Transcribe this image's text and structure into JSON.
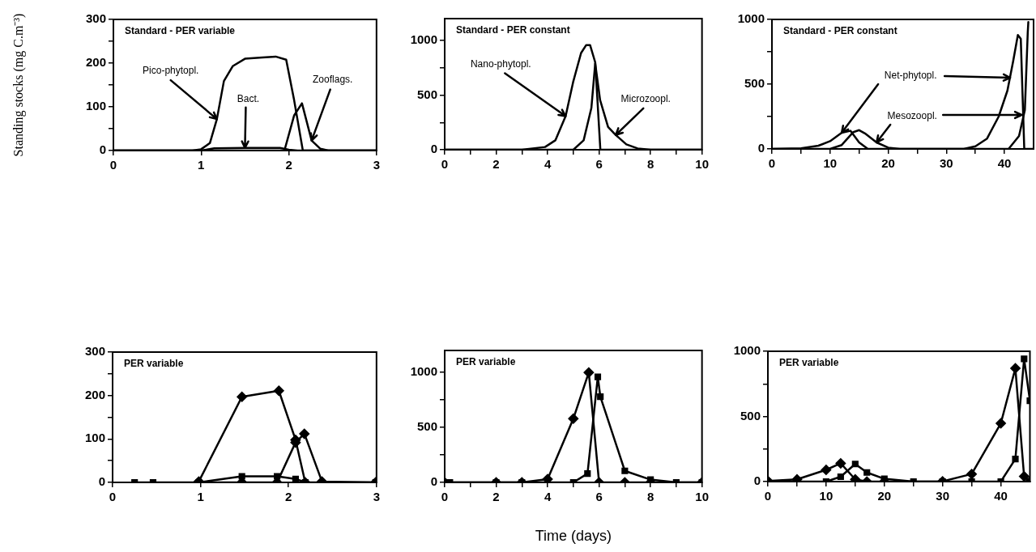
{
  "chart_data": [
    {
      "type": "line",
      "title": "Standard - PER variable",
      "ylabel": "Standing stocks (mg C.m⁻³)",
      "xlim": [
        0,
        3
      ],
      "xticks": [
        0,
        1,
        2,
        3
      ],
      "ylim": [
        0,
        300
      ],
      "yticks": [
        0,
        {
          "value": 50,
          "label": null
        },
        100,
        {
          "value": 150,
          "label": null
        },
        200,
        {
          "value": 250,
          "label": null
        },
        300
      ],
      "series": [
        {
          "color": "#000000",
          "x": [
            0,
            0.9,
            1.0,
            1.1,
            1.18,
            1.26,
            1.36,
            1.5,
            1.7,
            1.85,
            1.97,
            2.06,
            2.16,
            3
          ],
          "values": [
            0,
            0,
            3,
            17,
            72,
            159,
            193,
            210,
            213,
            215,
            208,
            116,
            0,
            0
          ]
        },
        {
          "color": "#000000",
          "x": [
            0,
            1.0,
            1.15,
            1.5,
            1.9,
            2.0,
            2.1,
            3
          ],
          "values": [
            0,
            0,
            5,
            6,
            6,
            2,
            0,
            0
          ]
        },
        {
          "color": "#000000",
          "x": [
            0,
            1.95,
            2.06,
            2.15,
            2.26,
            2.36,
            2.45,
            3
          ],
          "values": [
            0,
            0,
            80,
            108,
            23,
            4,
            0,
            0
          ]
        }
      ],
      "annotations": [
        {
          "text": "Pico-phytopl.",
          "x": 1.18,
          "y": 72
        },
        {
          "text": "Bact.",
          "x": 1.5,
          "y": 6
        },
        {
          "text": "Zooflags.",
          "x": 2.26,
          "y": 23
        }
      ]
    },
    {
      "type": "line",
      "title": "Standard - PER constant",
      "xlim": [
        0,
        10
      ],
      "xticks": [
        0,
        {
          "value": 1,
          "label": null
        },
        2,
        {
          "value": 3,
          "label": null
        },
        4,
        {
          "value": 5,
          "label": null
        },
        6,
        {
          "value": 7,
          "label": null
        },
        8,
        {
          "value": 9,
          "label": null
        },
        10
      ],
      "ylim": [
        0,
        1200
      ],
      "yticks": [
        0,
        {
          "value": 250,
          "label": null
        },
        500,
        {
          "value": 750,
          "label": null
        },
        1000
      ],
      "series": [
        {
          "color": "#000000",
          "x": [
            0,
            3,
            3.9,
            4.3,
            4.7,
            5.0,
            5.3,
            5.5,
            5.65,
            5.85,
            6.05,
            10
          ],
          "values": [
            0,
            0,
            25,
            86,
            307,
            627,
            885,
            958,
            958,
            800,
            0,
            0
          ]
        },
        {
          "color": "#000000",
          "x": [
            0,
            5.0,
            5.4,
            5.7,
            5.85,
            6.04,
            6.35,
            6.65,
            7.06,
            7.5,
            8,
            10
          ],
          "values": [
            0,
            0,
            86,
            381,
            790,
            455,
            209,
            135,
            49,
            12,
            0,
            0
          ]
        }
      ],
      "annotations": [
        {
          "text": "Nano-phytopl.",
          "x": 4.7,
          "y": 307
        },
        {
          "text": "Microzoopl.",
          "x": 6.65,
          "y": 135
        }
      ]
    },
    {
      "type": "line",
      "title": "Standard - PER constant",
      "xlim": [
        0,
        45
      ],
      "xticks": [
        0,
        {
          "value": 5,
          "label": null
        },
        10,
        {
          "value": 15,
          "label": null
        },
        20,
        {
          "value": 25,
          "label": null
        },
        30,
        {
          "value": 35,
          "label": null
        },
        40
      ],
      "ylim": [
        0,
        1000
      ],
      "yticks": [
        0,
        {
          "value": 250,
          "label": null
        },
        500,
        {
          "value": 750,
          "label": null
        },
        1000
      ],
      "series": [
        {
          "color": "#000000",
          "x": [
            0,
            5,
            8,
            10,
            12,
            13.5,
            15,
            16.5,
            33,
            35,
            37,
            39,
            40.5,
            41.5,
            42.3,
            42.8,
            43.4,
            45
          ],
          "values": [
            0,
            5,
            25,
            60,
            125,
            140,
            50,
            0,
            0,
            20,
            80,
            250,
            450,
            680,
            880,
            850,
            0,
            0
          ]
        },
        {
          "color": "#000000",
          "x": [
            0,
            10,
            12,
            14,
            15,
            16,
            18,
            20,
            22,
            40.7,
            42.5,
            43.5,
            44,
            44.1
          ],
          "values": [
            0,
            0,
            30,
            130,
            145,
            120,
            50,
            10,
            0,
            0,
            100,
            300,
            900,
            980
          ]
        }
      ],
      "annotations": [
        {
          "text": "Net-phytopl.",
          "x": 12,
          "y": 125
        },
        {
          "text": "Mesozoopl.",
          "x": 18,
          "y": 50
        }
      ]
    },
    {
      "type": "line",
      "title": "PER variable",
      "xlim": [
        0,
        3
      ],
      "xticks": [
        0,
        1,
        2,
        3
      ],
      "ylim": [
        0,
        300
      ],
      "yticks": [
        0,
        {
          "value": 50,
          "label": null
        },
        100,
        {
          "value": 150,
          "label": null
        },
        200,
        {
          "value": 250,
          "label": null
        },
        300
      ],
      "series": [
        {
          "color": "#000000",
          "marker": "diamond",
          "x": [
            0.98,
            1.47,
            1.89,
            2.08,
            2.19
          ],
          "values": [
            2,
            197,
            211,
            98,
            0
          ]
        },
        {
          "color": "#000000",
          "marker": "square",
          "x": [
            0.25,
            0.46,
            0.98,
            1.47,
            1.87,
            2.08,
            2.19,
            2.99
          ],
          "values": [
            0,
            0,
            0,
            14,
            14,
            8,
            0,
            0
          ]
        },
        {
          "color": "#000000",
          "marker": "diamond",
          "x": [
            0.98,
            1.47,
            1.87,
            2.08,
            2.18,
            2.38,
            2.99
          ],
          "values": [
            0,
            0,
            0,
            92,
            112,
            2,
            0
          ]
        }
      ]
    },
    {
      "type": "line",
      "title": "PER variable",
      "xlabel": "Time (days)",
      "xlim": [
        0,
        10
      ],
      "xticks": [
        0,
        {
          "value": 1,
          "label": null
        },
        2,
        {
          "value": 3,
          "label": null
        },
        4,
        {
          "value": 5,
          "label": null
        },
        6,
        {
          "value": 7,
          "label": null
        },
        8,
        {
          "value": 9,
          "label": null
        },
        10
      ],
      "ylim": [
        0,
        1200
      ],
      "yticks": [
        0,
        {
          "value": 250,
          "label": null
        },
        500,
        {
          "value": 750,
          "label": null
        },
        1000
      ],
      "series": [
        {
          "color": "#000000",
          "marker": "diamond",
          "x": [
            0,
            2,
            3,
            4,
            5,
            5.6,
            6,
            7,
            8,
            10
          ],
          "values": [
            0,
            0,
            0,
            30,
            580,
            1000,
            0,
            0,
            0,
            0
          ]
        },
        {
          "color": "#000000",
          "marker": "square",
          "x": [
            0.2,
            2,
            3,
            5,
            5.55,
            5.95,
            6.05,
            7,
            8,
            9,
            10
          ],
          "values": [
            0,
            0,
            0,
            0,
            80,
            960,
            780,
            105,
            25,
            0,
            0
          ]
        }
      ]
    },
    {
      "type": "line",
      "title": "PER variable",
      "xlim": [
        0,
        45
      ],
      "xticks": [
        0,
        {
          "value": 5,
          "label": null
        },
        10,
        {
          "value": 15,
          "label": null
        },
        20,
        {
          "value": 25,
          "label": null
        },
        30,
        {
          "value": 35,
          "label": null
        },
        40
      ],
      "ylim": [
        0,
        1000
      ],
      "yticks": [
        0,
        {
          "value": 250,
          "label": null
        },
        500,
        {
          "value": 750,
          "label": null
        },
        1000
      ],
      "series": [
        {
          "color": "#000000",
          "marker": "diamond",
          "x": [
            0,
            5,
            10,
            12.5,
            15,
            17,
            20,
            30,
            35,
            40,
            42.5,
            44,
            45
          ],
          "values": [
            5,
            17,
            90,
            140,
            17,
            0,
            0,
            2,
            58,
            447,
            869,
            40,
            0
          ]
        },
        {
          "color": "#000000",
          "marker": "square",
          "x": [
            0,
            5,
            10,
            12.5,
            15,
            17,
            20,
            25,
            30,
            35,
            40,
            42.5,
            44,
            45
          ],
          "values": [
            0,
            0,
            0,
            37,
            135,
            70,
            21,
            0,
            0,
            0,
            0,
            173,
            942,
            620
          ]
        }
      ]
    }
  ]
}
